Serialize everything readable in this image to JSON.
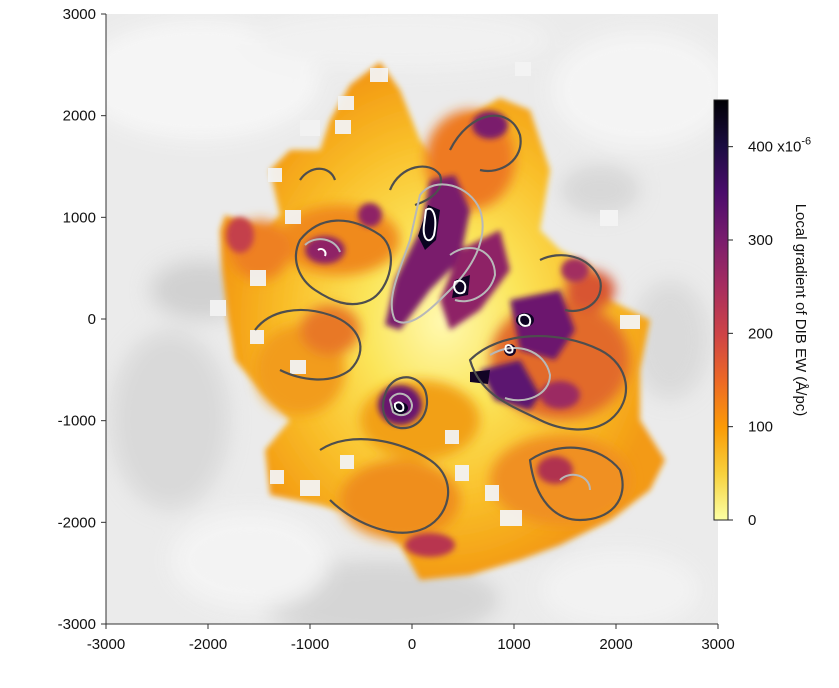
{
  "chart_data": {
    "type": "heatmap",
    "title": "",
    "xlabel": "",
    "ylabel": "",
    "xlim": [
      -3000,
      3000
    ],
    "ylim": [
      -3000,
      3000
    ],
    "x_ticks": [
      "-3000",
      "-2000",
      "-1000",
      "0",
      "1000",
      "2000",
      "3000"
    ],
    "y_ticks": [
      "3000",
      "2000",
      "1000",
      "0",
      "-1000",
      "-2000",
      "-3000"
    ],
    "x_tick_values": [
      -3000,
      -2000,
      -1000,
      0,
      1000,
      2000,
      3000
    ],
    "y_tick_values": [
      3000,
      2000,
      1000,
      0,
      -1000,
      -2000,
      -3000
    ],
    "colorbar": {
      "label": "Local gradient of DIB EW (Å/pc)",
      "ticks": [
        "400 x10",
        "300",
        "200",
        "100",
        "0"
      ],
      "tick_values": [
        400,
        300,
        200,
        100,
        0
      ],
      "exponent": "-6",
      "range": [
        0,
        450
      ],
      "colormap": "inferno_r",
      "colors": [
        "#fcffa4",
        "#f7d13d",
        "#fb9b06",
        "#ed6925",
        "#cf4446",
        "#a52c60",
        "#781c6d",
        "#4a0c6b",
        "#1b0c41",
        "#000004"
      ]
    },
    "background_color": "#e8e8e8",
    "contour_colors": [
      "#505050",
      "#aaaaaa",
      "#ffffff"
    ],
    "high_gradient_features": [
      {
        "x": 150,
        "y": 1000,
        "value": 450
      },
      {
        "x": 480,
        "y": 300,
        "value": 420
      },
      {
        "x": 1200,
        "y": -50,
        "value": 380
      },
      {
        "x": 1000,
        "y": -350,
        "value": 400
      },
      {
        "x": -100,
        "y": -900,
        "value": 430
      },
      {
        "x": -900,
        "y": 650,
        "value": 300
      },
      {
        "x": 700,
        "y": 2000,
        "value": 320
      },
      {
        "x": 1700,
        "y": -500,
        "value": 300
      }
    ]
  }
}
